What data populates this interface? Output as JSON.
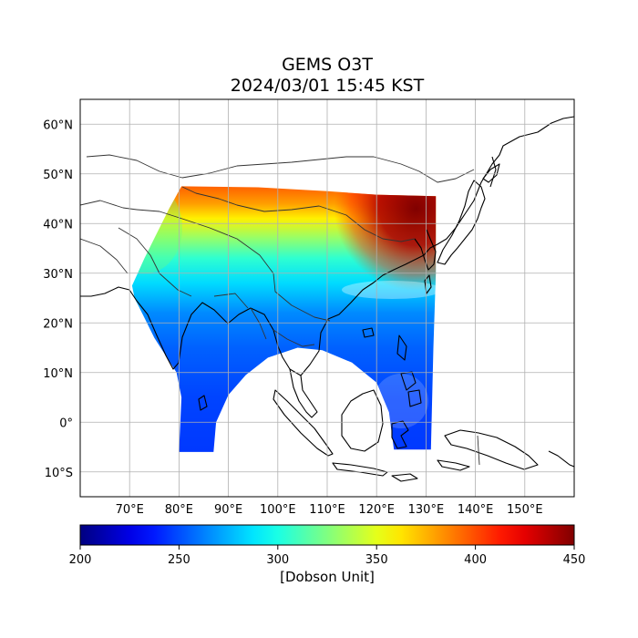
{
  "title": {
    "line1": "GEMS O3T",
    "line2": "2024/03/01 15:45 KST"
  },
  "map": {
    "lon_range": [
      60,
      160
    ],
    "lat_range": [
      -15,
      65
    ],
    "lon_ticks": [
      {
        "value": 70,
        "label": "70°E"
      },
      {
        "value": 80,
        "label": "80°E"
      },
      {
        "value": 90,
        "label": "90°E"
      },
      {
        "value": 100,
        "label": "100°E"
      },
      {
        "value": 110,
        "label": "110°E"
      },
      {
        "value": 120,
        "label": "120°E"
      },
      {
        "value": 130,
        "label": "130°E"
      },
      {
        "value": 140,
        "label": "140°E"
      },
      {
        "value": 150,
        "label": "150°E"
      }
    ],
    "lat_ticks": [
      {
        "value": 60,
        "label": "60°N"
      },
      {
        "value": 50,
        "label": "50°N"
      },
      {
        "value": 40,
        "label": "40°N"
      },
      {
        "value": 30,
        "label": "30°N"
      },
      {
        "value": 20,
        "label": "20°N"
      },
      {
        "value": 10,
        "label": "10°N"
      },
      {
        "value": 0,
        "label": "0°"
      },
      {
        "value": -10,
        "label": "10°S"
      }
    ],
    "grid": true,
    "variable": "Total column ozone (O3T)"
  },
  "colorbar": {
    "min": 200,
    "max": 450,
    "ticks": [
      200,
      250,
      300,
      350,
      400,
      450
    ],
    "label": "[Dobson Unit]",
    "colormap": "jet"
  },
  "ozone_field": {
    "coverage_polygon_lonlat": [
      [
        80.5,
        47.5
      ],
      [
        96,
        47.3
      ],
      [
        110,
        46.5
      ],
      [
        120,
        45.8
      ],
      [
        132,
        45.5
      ],
      [
        132,
        30
      ],
      [
        131.5,
        15
      ],
      [
        131,
        -5.5
      ],
      [
        123.5,
        -5.5
      ],
      [
        122.5,
        2
      ],
      [
        120,
        8
      ],
      [
        115,
        12
      ],
      [
        109,
        14.5
      ],
      [
        104,
        15
      ],
      [
        98,
        13
      ],
      [
        93.5,
        9.5
      ],
      [
        90,
        5.5
      ],
      [
        87.5,
        0
      ],
      [
        87,
        -6
      ],
      [
        80,
        -6
      ],
      [
        80.5,
        5
      ],
      [
        79.5,
        10
      ],
      [
        75,
        17
      ],
      [
        73,
        21
      ],
      [
        71,
        25
      ],
      [
        70.5,
        27.5
      ],
      [
        73,
        33
      ],
      [
        76,
        39
      ],
      [
        78,
        43
      ],
      [
        80.5,
        47.5
      ]
    ],
    "latitude_profile_du": [
      {
        "lat": -6,
        "du": 245
      },
      {
        "lat": 5,
        "du": 248
      },
      {
        "lat": 15,
        "du": 255
      },
      {
        "lat": 22,
        "du": 265
      },
      {
        "lat": 28,
        "du": 285
      },
      {
        "lat": 33,
        "du": 305
      },
      {
        "lat": 37,
        "du": 330
      },
      {
        "lat": 41,
        "du": 360
      },
      {
        "lat": 44,
        "du": 380
      },
      {
        "lat": 47.5,
        "du": 395
      }
    ],
    "northeast_maximum": {
      "center_lon": 128,
      "center_lat": 43,
      "du": 440
    }
  }
}
